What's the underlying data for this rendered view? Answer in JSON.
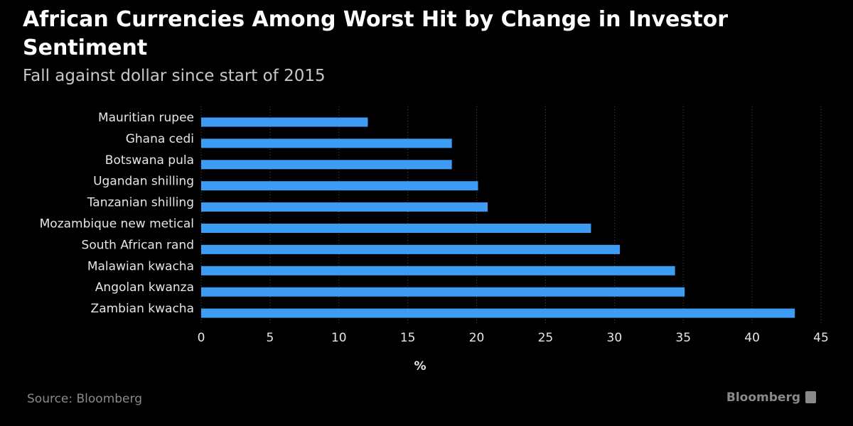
{
  "chart_data": {
    "type": "hbar",
    "title": "African Currencies Among Worst Hit by Change in Investor Sentiment",
    "subtitle": "Fall against dollar since start of 2015",
    "categories": [
      "Mauritian rupee",
      "Ghana cedi",
      "Botswana pula",
      "Ugandan shilling",
      "Tanzanian shilling",
      "Mozambique new metical",
      "South African rand",
      "Malawian kwacha",
      "Angolan kwanza",
      "Zambian kwacha"
    ],
    "values": [
      12.1,
      18.2,
      18.2,
      20.1,
      20.8,
      28.3,
      30.4,
      34.4,
      35.1,
      43.1
    ],
    "color": "#3d9df5",
    "xlim": [
      0,
      45
    ],
    "xticks": [
      0,
      5,
      10,
      15,
      20,
      25,
      30,
      35,
      40,
      45
    ],
    "xlabel": "%",
    "grid": true,
    "source": "Source: Bloomberg",
    "brand": "Bloomberg"
  }
}
